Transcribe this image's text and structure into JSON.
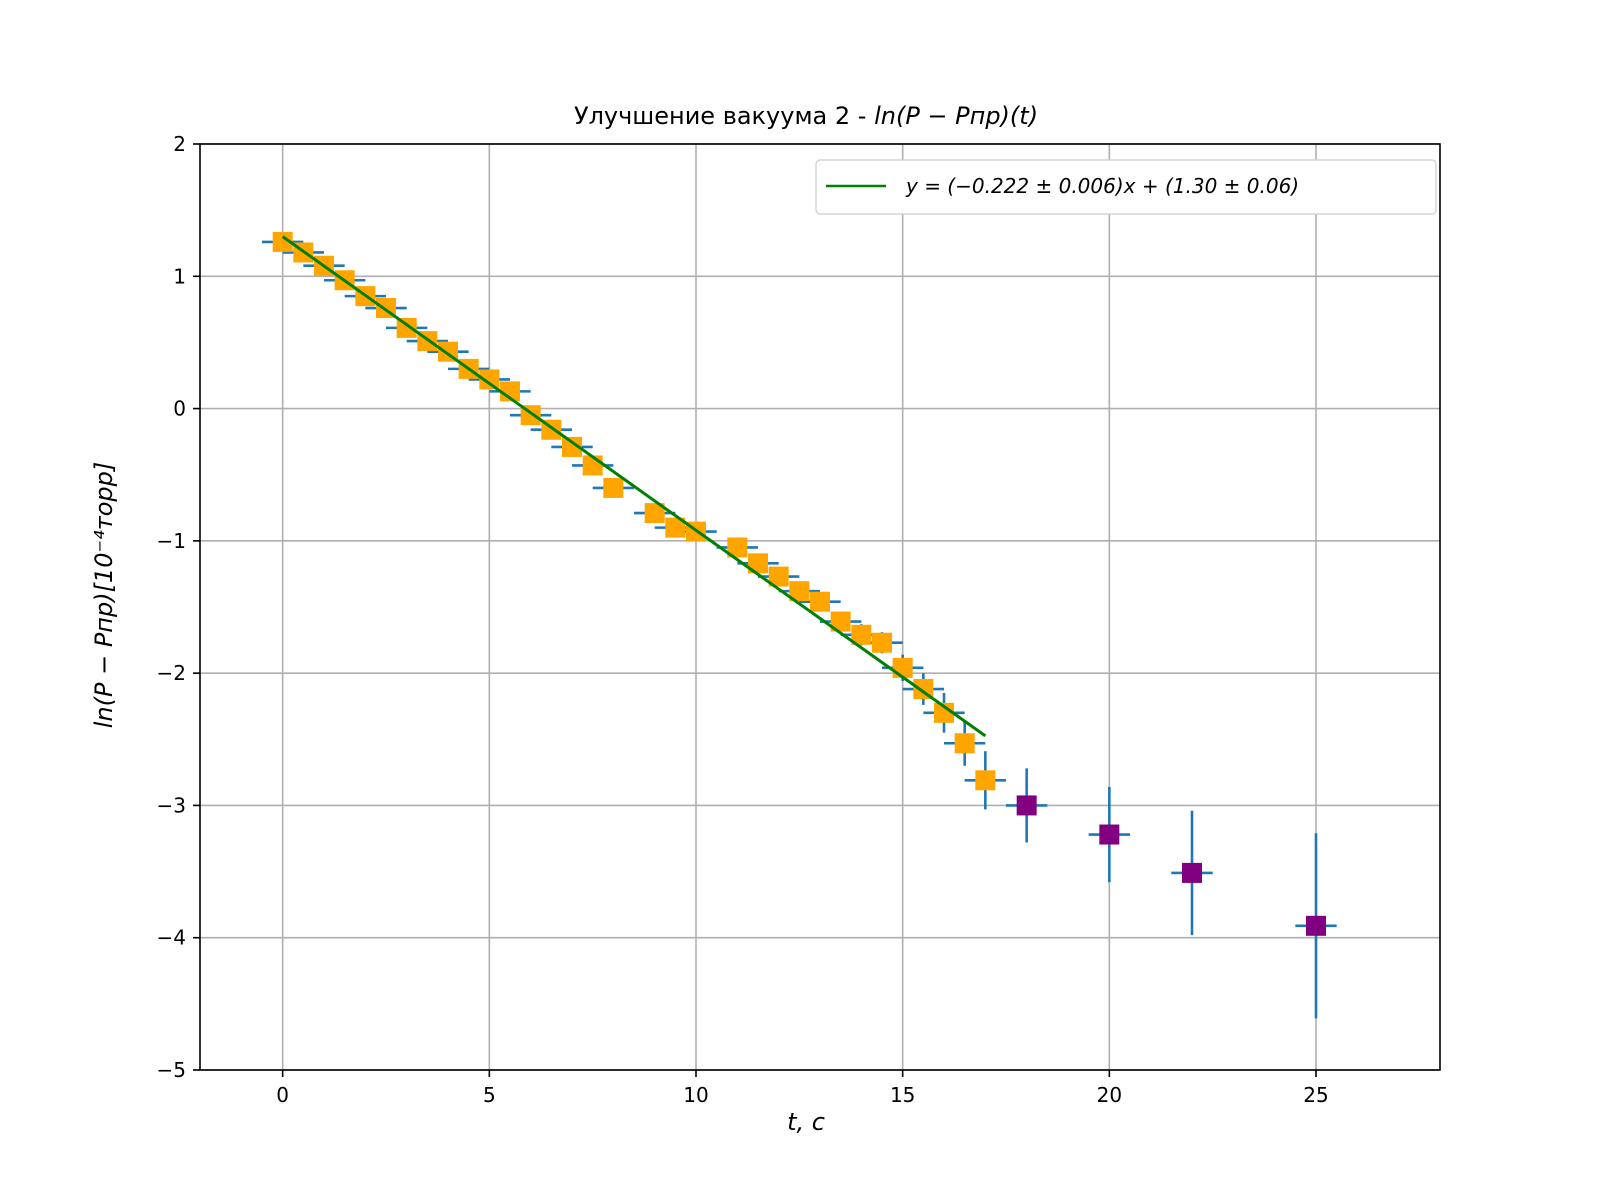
{
  "chart_data": {
    "type": "scatter",
    "title_plain": "Улучшение вакуума 2 - ",
    "title_math": "ln(P − Pпр)(t)",
    "xlabel": "t, c",
    "ylabel": "ln(P − Pпр)[10⁻⁴торр]",
    "xlim": [
      -2,
      28
    ],
    "ylim": [
      -5,
      2
    ],
    "x_ticks": [
      0,
      5,
      10,
      15,
      20,
      25
    ],
    "y_ticks": [
      2,
      1,
      0,
      -1,
      -2,
      -3,
      -4,
      -5
    ],
    "x_tick_labels": [
      "0",
      "5",
      "10",
      "15",
      "20",
      "25"
    ],
    "y_tick_labels": [
      "2",
      "1",
      "0",
      "−1",
      "−2",
      "−3",
      "−4",
      "−5"
    ],
    "grid": true,
    "legend_position": "top-right",
    "legend_label": "y = (−0.222 ± 0.006)x + (1.30 ± 0.06)",
    "colors": {
      "fit_line": "#008000",
      "fitted_points": "#FFA500",
      "excluded_points": "#800080",
      "error_bars": "#1f77b4",
      "grid": "#b0b0b0"
    },
    "fit": {
      "slope": -0.222,
      "intercept": 1.3,
      "x_range": [
        0,
        17
      ]
    },
    "series": [
      {
        "name": "fitted",
        "x": [
          0,
          0.5,
          1,
          1.5,
          2,
          2.5,
          3,
          3.5,
          4,
          4.5,
          5,
          5.5,
          6,
          6.5,
          7,
          7.5,
          8,
          9,
          9.5,
          10,
          11,
          11.5,
          12,
          12.5,
          13,
          13.5,
          14,
          14.5,
          15,
          15.5,
          16,
          16.5,
          17
        ],
        "y": [
          1.26,
          1.18,
          1.08,
          0.97,
          0.85,
          0.76,
          0.61,
          0.51,
          0.43,
          0.3,
          0.22,
          0.13,
          -0.05,
          -0.16,
          -0.29,
          -0.43,
          -0.6,
          -0.79,
          -0.9,
          -0.93,
          -1.05,
          -1.17,
          -1.27,
          -1.38,
          -1.46,
          -1.61,
          -1.71,
          -1.77,
          -1.96,
          -2.12,
          -2.3,
          -2.53,
          -2.81
        ],
        "xerr": [
          0.5,
          0.5,
          0.5,
          0.5,
          0.5,
          0.5,
          0.5,
          0.5,
          0.5,
          0.5,
          0.5,
          0.5,
          0.5,
          0.5,
          0.5,
          0.5,
          0.5,
          0.5,
          0.5,
          0.5,
          0.5,
          0.5,
          0.5,
          0.5,
          0.5,
          0.5,
          0.5,
          0.5,
          0.5,
          0.5,
          0.5,
          0.5,
          0.5
        ],
        "yerr": [
          0.02,
          0.02,
          0.02,
          0.02,
          0.02,
          0.02,
          0.02,
          0.02,
          0.03,
          0.03,
          0.03,
          0.03,
          0.03,
          0.03,
          0.03,
          0.03,
          0.03,
          0.03,
          0.04,
          0.04,
          0.05,
          0.05,
          0.06,
          0.06,
          0.07,
          0.07,
          0.08,
          0.08,
          0.1,
          0.12,
          0.15,
          0.17,
          0.22
        ]
      },
      {
        "name": "excluded",
        "x": [
          18,
          20,
          22,
          25
        ],
        "y": [
          -3.0,
          -3.22,
          -3.51,
          -3.91
        ],
        "xerr": [
          0.5,
          0.5,
          0.5,
          0.5
        ],
        "yerr": [
          0.28,
          0.36,
          0.47,
          0.7
        ]
      }
    ]
  }
}
